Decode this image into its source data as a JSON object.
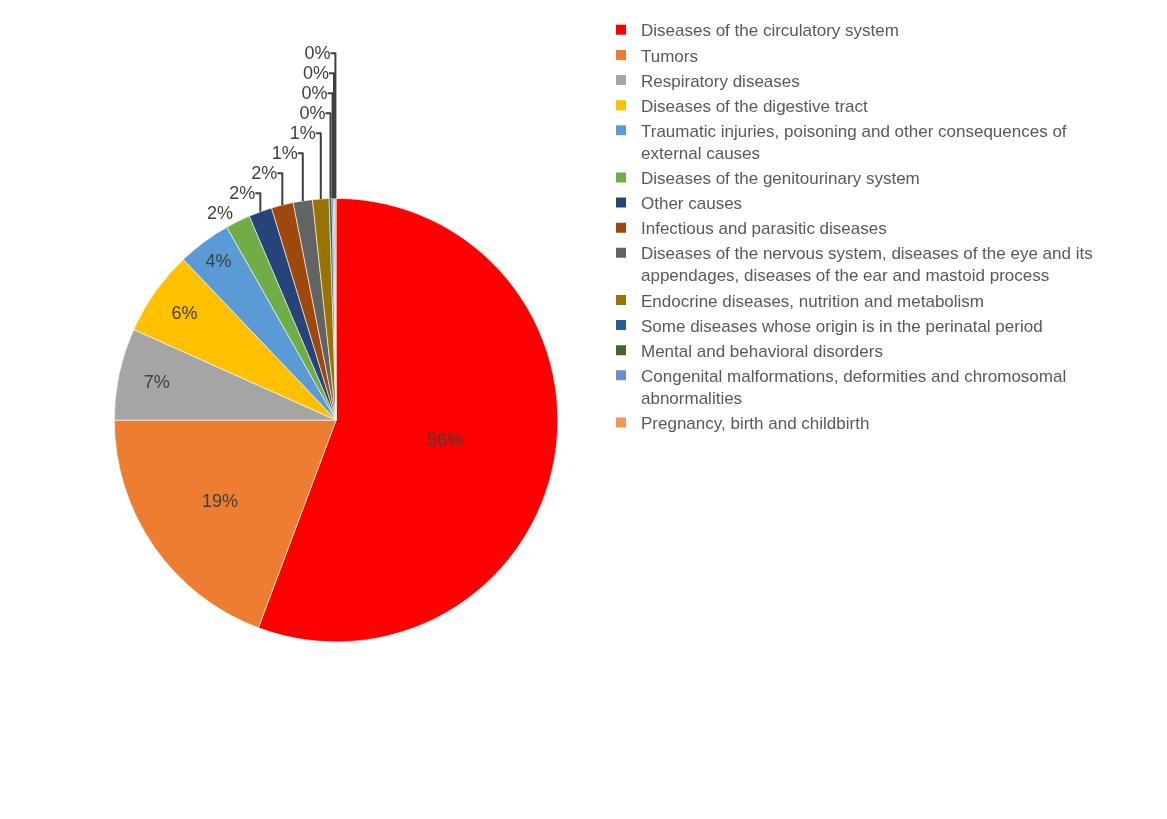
{
  "chart_data": {
    "type": "pie",
    "categories": [
      "Diseases of the circulatory system",
      "Tumors",
      "Respiratory diseases",
      "Diseases of the digestive tract",
      "Traumatic injuries, poisoning and other consequences of external causes",
      "Diseases of the genitourinary system",
      "Other causes",
      "Infectious and parasitic diseases",
      "Diseases of the nervous system, diseases of the eye and its appendages, diseases of the ear and mastoid process",
      "Endocrine diseases, nutrition and metabolism",
      "Some diseases whose origin is in the perinatal period",
      "Mental and behavioral disorders",
      "Congenital malformations, deformities and chromosomal abnormalities",
      "Pregnancy, birth and childbirth"
    ],
    "values": [
      55.7,
      19.3,
      6.7,
      6.2,
      3.9,
      1.8,
      1.7,
      1.6,
      1.4,
      1.2,
      0.2,
      0.1,
      0.1,
      0.1
    ],
    "value_labels": [
      "56%",
      "19%",
      "7%",
      "6%",
      "4%",
      "2%",
      "2%",
      "2%",
      "1%",
      "1%",
      "0%",
      "0%",
      "0%",
      "0%"
    ],
    "colors": [
      "#ff0000",
      "#ed7d31",
      "#a5a5a5",
      "#ffc000",
      "#5b9bd5",
      "#70ad47",
      "#264478",
      "#9e480e",
      "#636363",
      "#997300",
      "#255e91",
      "#43682b",
      "#698ed0",
      "#f1975a"
    ],
    "legend": "right"
  }
}
